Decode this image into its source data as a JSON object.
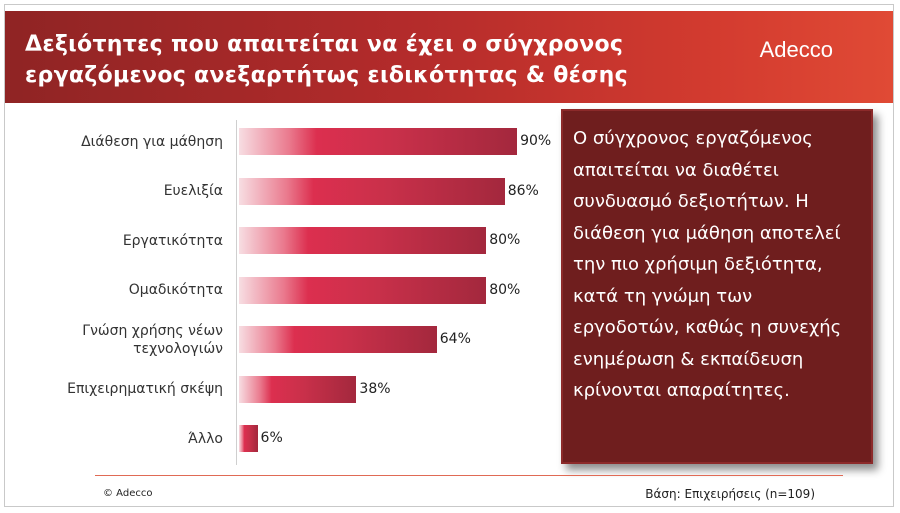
{
  "header": {
    "title_line1": "Δεξιότητες που απαιτείται να έχει ο σύγχρονος",
    "title_line2": "εργαζόμενος ανεξαρτήτως ειδικότητας & θέσης",
    "logo": "Adecco"
  },
  "chart_data": {
    "type": "bar",
    "orientation": "horizontal",
    "categories": [
      [
        "Διάθεση για μάθηση"
      ],
      [
        "Ευελιξία"
      ],
      [
        "Εργατικότητα"
      ],
      [
        "Ομαδικότητα"
      ],
      [
        "Γνώση χρήσης νέων",
        "τεχνολογιών"
      ],
      [
        "Επιχειρηματική σκέψη"
      ],
      [
        "Άλλο"
      ]
    ],
    "values": [
      90,
      86,
      80,
      80,
      64,
      38,
      6
    ],
    "value_labels": [
      "90%",
      "86%",
      "80%",
      "80%",
      "64%",
      "38%",
      "6%"
    ],
    "xlim": [
      0,
      100
    ],
    "grid": false,
    "bar_color": "#c9304a"
  },
  "callout": {
    "text": "Ο σύγχρονος εργαζόμενος απαιτείται να διαθέτει συνδυασμό δεξιοτήτων.  Η διάθεση για μάθηση αποτελεί την πιο χρήσιμη δεξιότητα, κατά τη γνώμη των εργοδοτών, καθώς η συνεχής ενημέρωση & εκπαίδευση κρίνονται απαραίτητες.",
    "bg_color": "#6f1e1e"
  },
  "footer": {
    "copyright": "© Adecco",
    "base": "Βάση: Επιχειρήσεις (n=109)"
  }
}
